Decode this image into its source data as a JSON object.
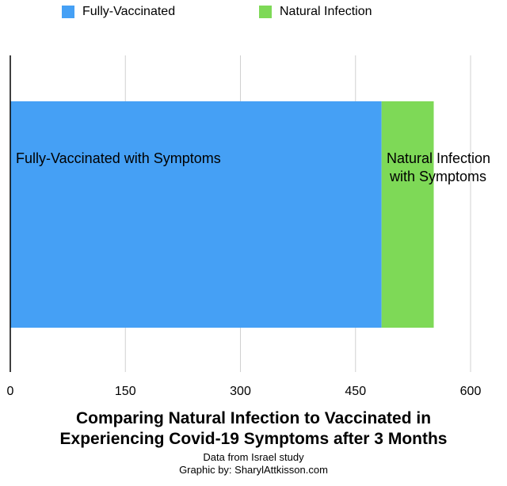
{
  "chart_data": {
    "type": "bar",
    "orientation": "horizontal",
    "stacked": true,
    "series": [
      {
        "name": "Fully-Vaccinated",
        "values": [
          484
        ],
        "color": "#45a0f5",
        "bar_label": [
          "Fully-Vaccinated with Symptoms"
        ]
      },
      {
        "name": "Natural Infection",
        "values": [
          68
        ],
        "color": "#7ed957",
        "bar_label": [
          "Natural Infection",
          "with Symptoms"
        ]
      }
    ],
    "x_ticks": [
      "0",
      "150",
      "300",
      "450",
      "600"
    ],
    "xlim": [
      0,
      600
    ],
    "grid": true,
    "legend_position": "top",
    "title": [
      "Comparing Natural Infection to Vaccinated in",
      "Experiencing Covid-19 Symptoms after 3 Months"
    ],
    "captions": [
      "Data from Israel study",
      "Graphic by: SharylAttkisson.com"
    ]
  }
}
